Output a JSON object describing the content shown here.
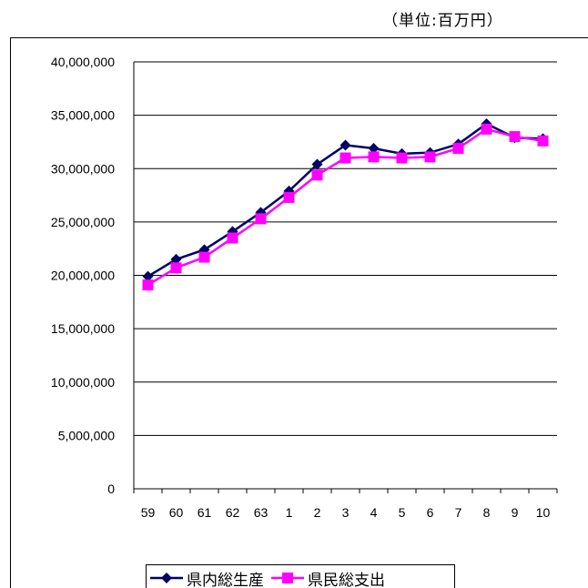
{
  "unit_label": "（単位:百万円）",
  "chart_data": {
    "type": "line",
    "title": "",
    "xlabel": "",
    "ylabel": "",
    "categories": [
      "59",
      "60",
      "61",
      "62",
      "63",
      "1",
      "2",
      "3",
      "4",
      "5",
      "6",
      "7",
      "8",
      "9",
      "10"
    ],
    "ylim": [
      0,
      40000000
    ],
    "yticks": [
      0,
      5000000,
      10000000,
      15000000,
      20000000,
      25000000,
      30000000,
      35000000,
      40000000
    ],
    "ytick_labels": [
      "0",
      "5,000,000",
      "10,000,000",
      "15,000,000",
      "20,000,000",
      "25,000,000",
      "30,000,000",
      "35,000,000",
      "40,000,000"
    ],
    "grid": "horizontal",
    "legend_position": "bottom",
    "series": [
      {
        "name": "県内総生産",
        "color": "#000066",
        "marker": "diamond",
        "values": [
          19900000,
          21500000,
          22400000,
          24100000,
          25900000,
          27900000,
          30400000,
          32200000,
          31900000,
          31400000,
          31500000,
          32300000,
          34200000,
          32900000,
          32800000
        ]
      },
      {
        "name": "県民総支出",
        "color": "#ff00ff",
        "marker": "square",
        "values": [
          19100000,
          20700000,
          21700000,
          23500000,
          25300000,
          27300000,
          29400000,
          31000000,
          31100000,
          31000000,
          31100000,
          31900000,
          33700000,
          33000000,
          32600000
        ]
      }
    ]
  }
}
